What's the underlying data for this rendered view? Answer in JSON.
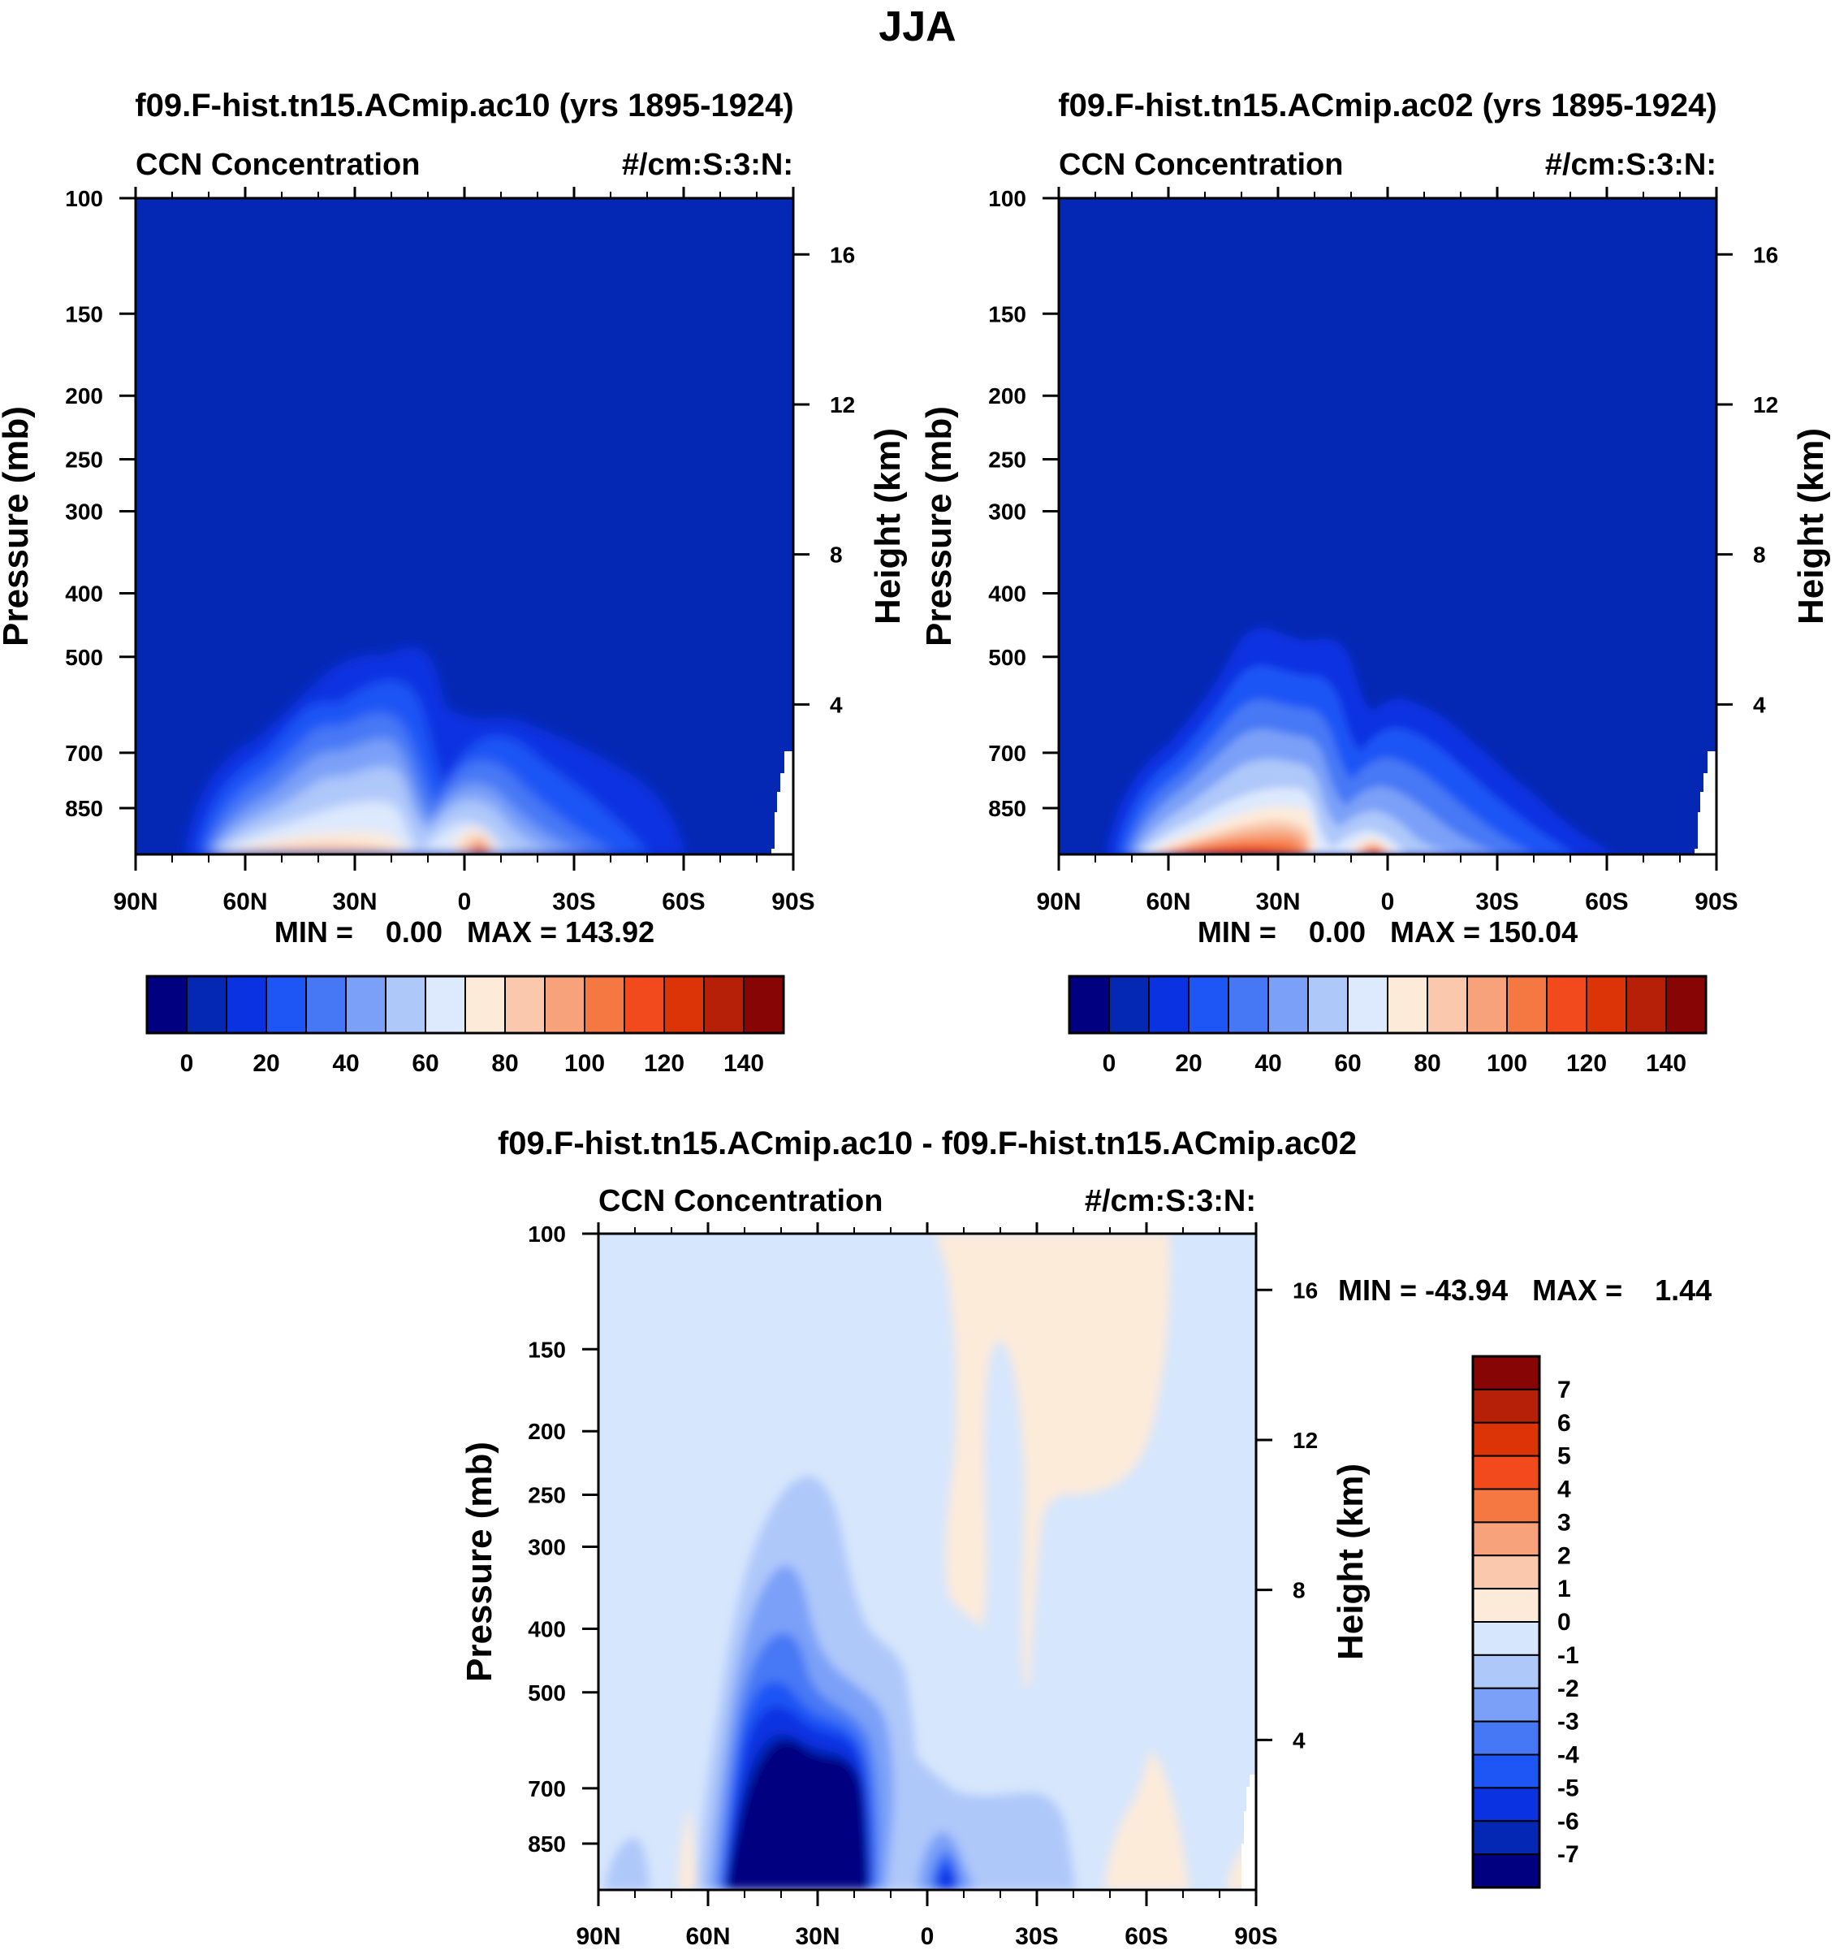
{
  "figure_title": "JJA",
  "colors": {
    "ccn_colorbar": [
      "#000080",
      "#0528b4",
      "#0a32e1",
      "#1e55f5",
      "#4678f5",
      "#7aa0f8",
      "#afc8fa",
      "#dde9fd",
      "#fdebda",
      "#f9c8ad",
      "#f7a27b",
      "#f57843",
      "#f24a1c",
      "#dc3307",
      "#b72008",
      "#870505"
    ],
    "diff_colorbar": [
      "#000080",
      "#0528b4",
      "#0a32e1",
      "#1e55f5",
      "#4678f5",
      "#7aa0f8",
      "#afc8fa",
      "#d6e6fc",
      "#fdebda",
      "#f9c8ad",
      "#f7a27b",
      "#f57843",
      "#f24a1c",
      "#dc3307",
      "#b72008",
      "#870505"
    ],
    "missing": "#ffffff"
  },
  "chart_data": [
    {
      "type": "heatmap",
      "panel": "top-left",
      "title": "f09.F-hist.tn15.ACmip.ac10 (yrs 1895-1924)",
      "left_label": "CCN Concentration",
      "right_label": "#/cm:S:3:N:",
      "xlabel": "",
      "ylabel": "Pressure (mb)",
      "y2label": "Height (km)",
      "x_ticks": [
        "90N",
        "60N",
        "30N",
        "0",
        "30S",
        "60S",
        "90S"
      ],
      "xlim": [
        90,
        -90
      ],
      "y_ticks": [
        "100",
        "150",
        "200",
        "250",
        "300",
        "400",
        "500",
        "700",
        "850"
      ],
      "ylim_mb": [
        100,
        1000
      ],
      "y2_ticks": [
        "4",
        "8",
        "12",
        "16"
      ],
      "stats": "MIN =    0.00   MAX = 143.92",
      "min": 0.0,
      "max": 143.92,
      "colorbar_labels": [
        "0",
        "20",
        "40",
        "60",
        "80",
        "100",
        "120",
        "140"
      ],
      "colorbar_levels": [
        0,
        10,
        20,
        30,
        40,
        50,
        60,
        70,
        80,
        90,
        100,
        110,
        120,
        130,
        140
      ],
      "colorbar_orientation": "horizontal",
      "surface_peak_lat": [
        {
          "lat": 78,
          "value": 6
        },
        {
          "lat": 68,
          "value": 35
        },
        {
          "lat": 58,
          "value": 60
        },
        {
          "lat": 48,
          "value": 78
        },
        {
          "lat": 38,
          "value": 88
        },
        {
          "lat": 30,
          "value": 90
        },
        {
          "lat": 22,
          "value": 85
        },
        {
          "lat": 14,
          "value": 70
        },
        {
          "lat": 6,
          "value": 25
        },
        {
          "lat": 0,
          "value": 70
        },
        {
          "lat": -6,
          "value": 143.92
        },
        {
          "lat": -14,
          "value": 90
        },
        {
          "lat": -24,
          "value": 60
        },
        {
          "lat": -40,
          "value": 35
        },
        {
          "lat": -55,
          "value": 12
        },
        {
          "lat": -70,
          "value": 3
        }
      ]
    },
    {
      "type": "heatmap",
      "panel": "top-right",
      "title": "f09.F-hist.tn15.ACmip.ac02 (yrs 1895-1924)",
      "left_label": "CCN Concentration",
      "right_label": "#/cm:S:3:N:",
      "xlabel": "",
      "ylabel": "Pressure (mb)",
      "y2label": "Height (km)",
      "x_ticks": [
        "90N",
        "60N",
        "30N",
        "0",
        "30S",
        "60S",
        "90S"
      ],
      "xlim": [
        90,
        -90
      ],
      "y_ticks": [
        "100",
        "150",
        "200",
        "250",
        "300",
        "400",
        "500",
        "700",
        "850"
      ],
      "ylim_mb": [
        100,
        1000
      ],
      "y2_ticks": [
        "4",
        "8",
        "12",
        "16"
      ],
      "stats": "MIN =    0.00   MAX = 150.04",
      "min": 0.0,
      "max": 150.04,
      "colorbar_labels": [
        "0",
        "20",
        "40",
        "60",
        "80",
        "100",
        "120",
        "140"
      ],
      "colorbar_levels": [
        0,
        10,
        20,
        30,
        40,
        50,
        60,
        70,
        80,
        90,
        100,
        110,
        120,
        130,
        140
      ],
      "colorbar_orientation": "horizontal",
      "surface_peak_lat": [
        {
          "lat": 78,
          "value": 6
        },
        {
          "lat": 68,
          "value": 40
        },
        {
          "lat": 58,
          "value": 85
        },
        {
          "lat": 48,
          "value": 115
        },
        {
          "lat": 38,
          "value": 128
        },
        {
          "lat": 30,
          "value": 125
        },
        {
          "lat": 22,
          "value": 112
        },
        {
          "lat": 14,
          "value": 90
        },
        {
          "lat": 6,
          "value": 28
        },
        {
          "lat": 0,
          "value": 75
        },
        {
          "lat": -6,
          "value": 150.04
        },
        {
          "lat": -14,
          "value": 92
        },
        {
          "lat": -24,
          "value": 62
        },
        {
          "lat": -40,
          "value": 36
        },
        {
          "lat": -55,
          "value": 12
        },
        {
          "lat": -70,
          "value": 3
        }
      ]
    },
    {
      "type": "heatmap",
      "panel": "bottom-difference",
      "title": "f09.F-hist.tn15.ACmip.ac10 - f09.F-hist.tn15.ACmip.ac02",
      "left_label": "CCN Concentration",
      "right_label": "#/cm:S:3:N:",
      "xlabel": "",
      "ylabel": "Pressure (mb)",
      "y2label": "Height (km)",
      "x_ticks": [
        "90N",
        "60N",
        "30N",
        "0",
        "30S",
        "60S",
        "90S"
      ],
      "xlim": [
        90,
        -90
      ],
      "y_ticks": [
        "100",
        "150",
        "200",
        "250",
        "300",
        "400",
        "500",
        "700",
        "850"
      ],
      "ylim_mb": [
        100,
        1000
      ],
      "y2_ticks": [
        "4",
        "8",
        "12",
        "16"
      ],
      "stats": "MIN = -43.94   MAX =    1.44",
      "min": -43.94,
      "max": 1.44,
      "colorbar_labels": [
        "7",
        "6",
        "5",
        "4",
        "3",
        "2",
        "1",
        "0",
        "-1",
        "-2",
        "-3",
        "-4",
        "-5",
        "-6",
        "-7"
      ],
      "colorbar_levels": [
        -7,
        -6,
        -5,
        -4,
        -3,
        -2,
        -1,
        0,
        1,
        2,
        3,
        4,
        5,
        6,
        7
      ],
      "colorbar_orientation": "vertical",
      "features": [
        {
          "name": "strong negative core",
          "lat_range": [
            57,
            12
          ],
          "top_mb": 560,
          "min_value": -43.94
        },
        {
          "name": "negative plume",
          "lat_range": [
            64,
            8
          ],
          "top_mb": 240,
          "value": -1
        },
        {
          "name": "positive upper band",
          "lat_range": [
            -2,
            -66
          ],
          "bottom_mb": 400,
          "value": 0.5
        },
        {
          "name": "positive surface patch",
          "lat_range": [
            -49,
            -69
          ],
          "top_mb": 650,
          "value": 0.5
        }
      ]
    }
  ]
}
